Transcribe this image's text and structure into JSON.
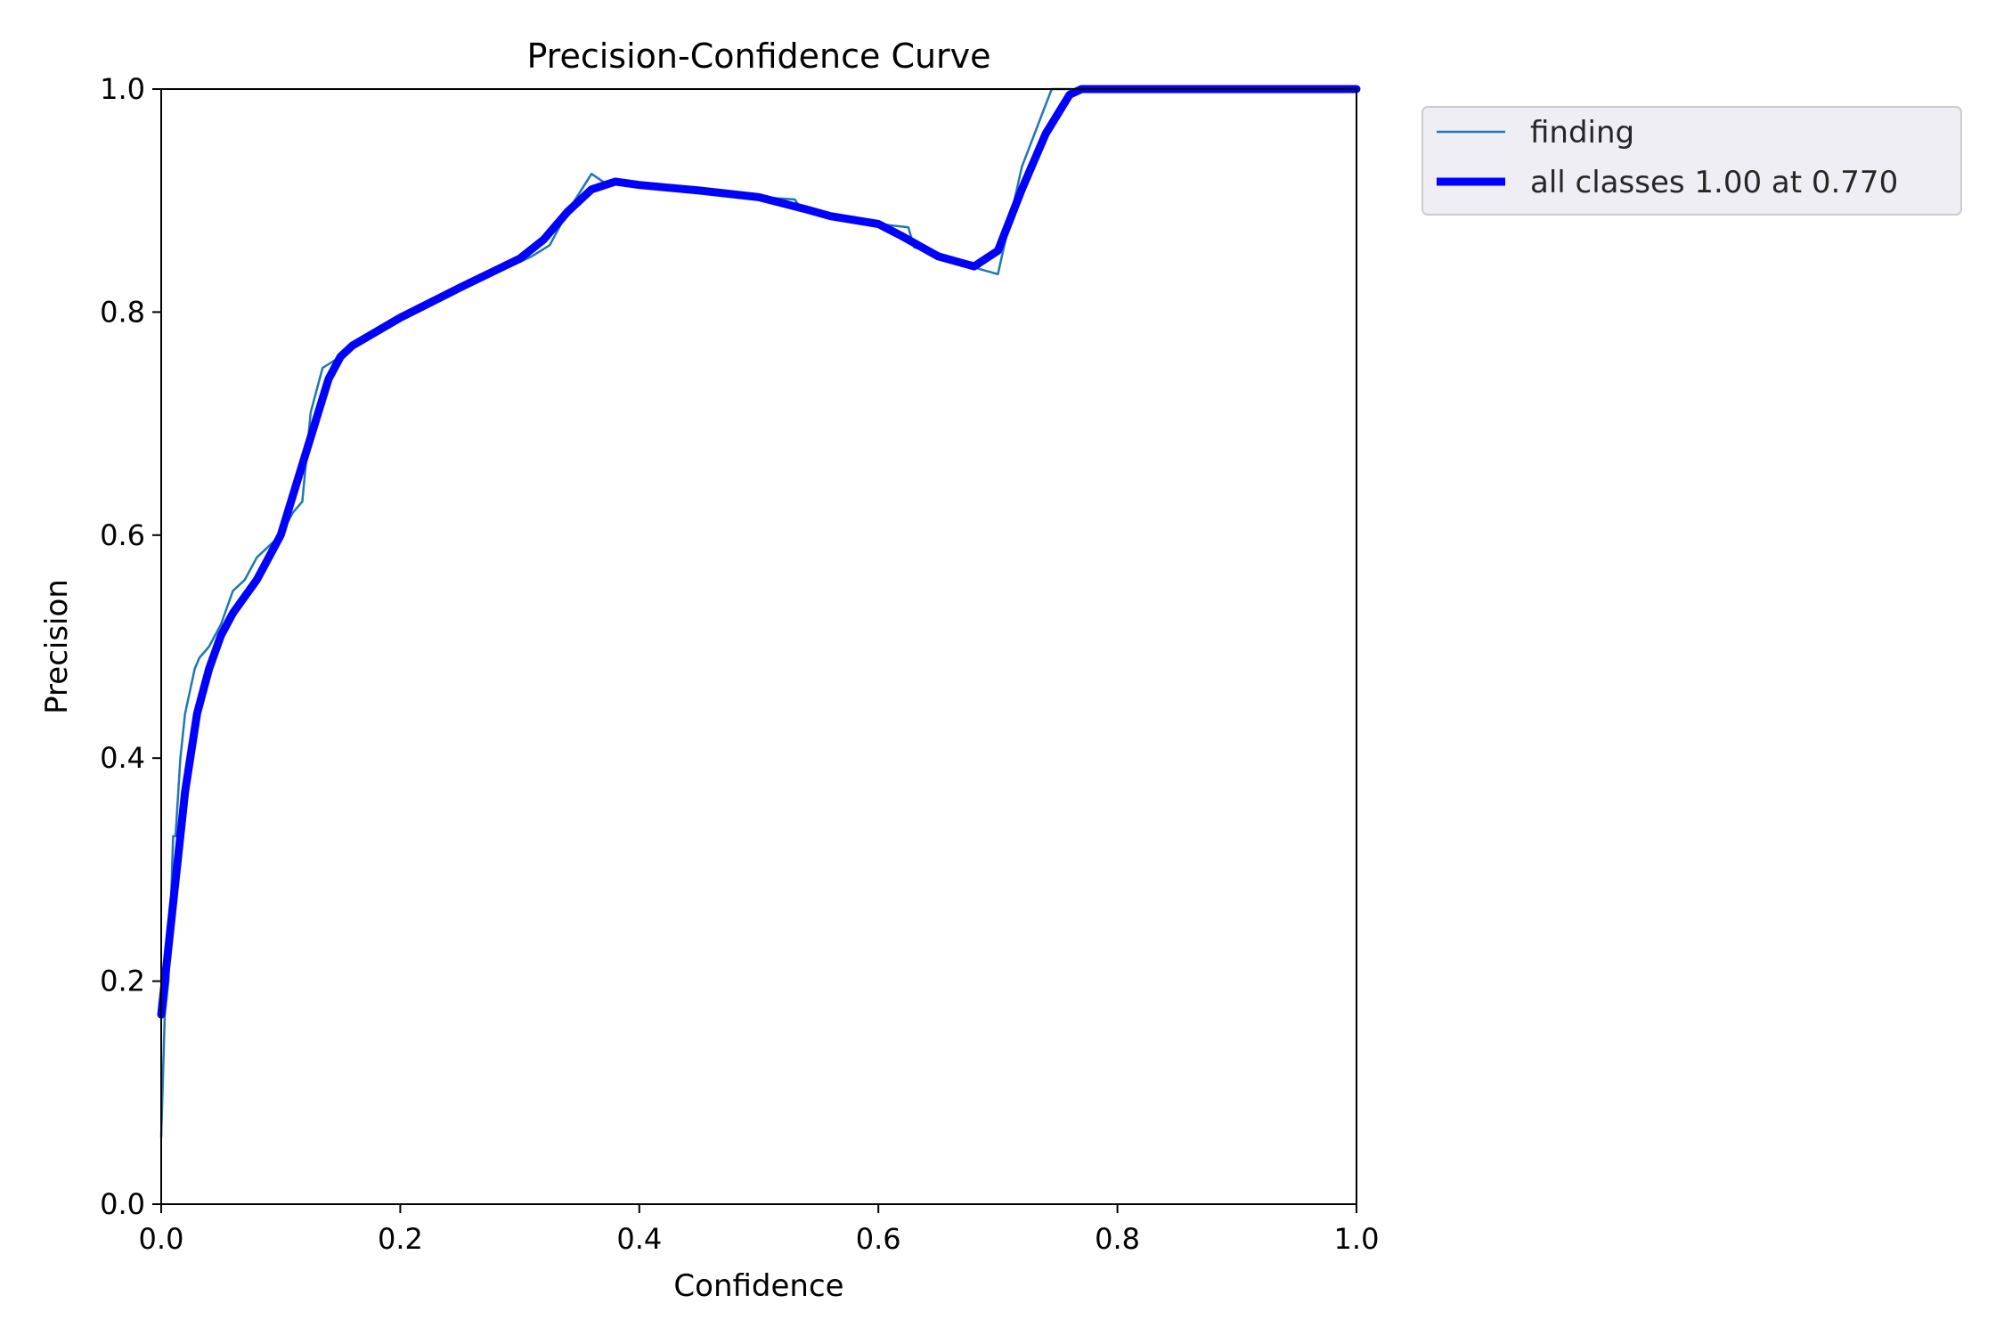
{
  "chart_data": {
    "type": "line",
    "title": "Precision-Confidence Curve",
    "xlabel": "Confidence",
    "ylabel": "Precision",
    "xlim": [
      0.0,
      1.0
    ],
    "ylim": [
      0.0,
      1.0
    ],
    "x_ticks": [
      "0.0",
      "0.2",
      "0.4",
      "0.6",
      "0.8",
      "1.0"
    ],
    "y_ticks": [
      "0.0",
      "0.2",
      "0.4",
      "0.6",
      "0.8",
      "1.0"
    ],
    "grid": false,
    "legend": {
      "placement": "outside-top-right",
      "entries": [
        "finding",
        "all classes 1.00 at 0.770"
      ]
    },
    "series": [
      {
        "name": "finding",
        "color": "#1f77b4",
        "x": [
          0.0,
          0.003,
          0.006,
          0.01,
          0.012,
          0.016,
          0.02,
          0.024,
          0.028,
          0.032,
          0.04,
          0.05,
          0.06,
          0.07,
          0.08,
          0.09,
          0.1,
          0.11,
          0.118,
          0.125,
          0.135,
          0.15,
          0.17,
          0.2,
          0.23,
          0.26,
          0.29,
          0.3,
          0.31,
          0.325,
          0.34,
          0.36,
          0.375,
          0.38,
          0.4,
          0.45,
          0.5,
          0.53,
          0.535,
          0.56,
          0.6,
          0.625,
          0.63,
          0.65,
          0.68,
          0.7,
          0.72,
          0.745,
          0.75,
          0.77,
          0.8,
          0.9,
          1.0
        ],
        "y": [
          0.06,
          0.17,
          0.2,
          0.33,
          0.33,
          0.4,
          0.44,
          0.46,
          0.48,
          0.49,
          0.5,
          0.52,
          0.55,
          0.56,
          0.58,
          0.59,
          0.6,
          0.62,
          0.63,
          0.71,
          0.75,
          0.76,
          0.775,
          0.795,
          0.81,
          0.825,
          0.84,
          0.845,
          0.85,
          0.86,
          0.89,
          0.924,
          0.913,
          0.915,
          0.912,
          0.908,
          0.903,
          0.901,
          0.893,
          0.884,
          0.879,
          0.876,
          0.858,
          0.853,
          0.84,
          0.834,
          0.93,
          1.0,
          1.0,
          1.0,
          1.0,
          1.0,
          1.0
        ]
      },
      {
        "name": "all classes 1.00 at 0.770",
        "color": "#0000ff",
        "x": [
          0.0,
          0.01,
          0.02,
          0.03,
          0.04,
          0.05,
          0.06,
          0.08,
          0.1,
          0.12,
          0.14,
          0.15,
          0.16,
          0.2,
          0.25,
          0.3,
          0.32,
          0.34,
          0.36,
          0.38,
          0.4,
          0.45,
          0.5,
          0.54,
          0.56,
          0.6,
          0.62,
          0.65,
          0.68,
          0.7,
          0.72,
          0.74,
          0.76,
          0.77,
          0.8,
          0.9,
          1.0
        ],
        "y": [
          0.17,
          0.27,
          0.37,
          0.44,
          0.48,
          0.51,
          0.53,
          0.56,
          0.6,
          0.67,
          0.74,
          0.76,
          0.77,
          0.795,
          0.822,
          0.848,
          0.865,
          0.89,
          0.91,
          0.917,
          0.914,
          0.909,
          0.903,
          0.892,
          0.886,
          0.879,
          0.868,
          0.85,
          0.841,
          0.855,
          0.91,
          0.96,
          0.995,
          1.0,
          1.0,
          1.0,
          1.0
        ]
      }
    ]
  }
}
